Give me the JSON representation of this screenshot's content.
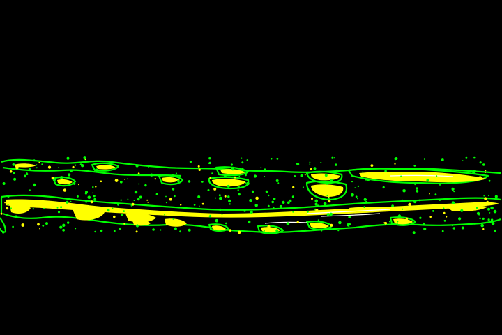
{
  "image": {
    "background_color": "#000000",
    "palette": {
      "outline": "#00ff00",
      "fill": "#ffff00",
      "core": "#ffffff"
    },
    "regions": [
      "upper-band",
      "lower-band"
    ]
  }
}
